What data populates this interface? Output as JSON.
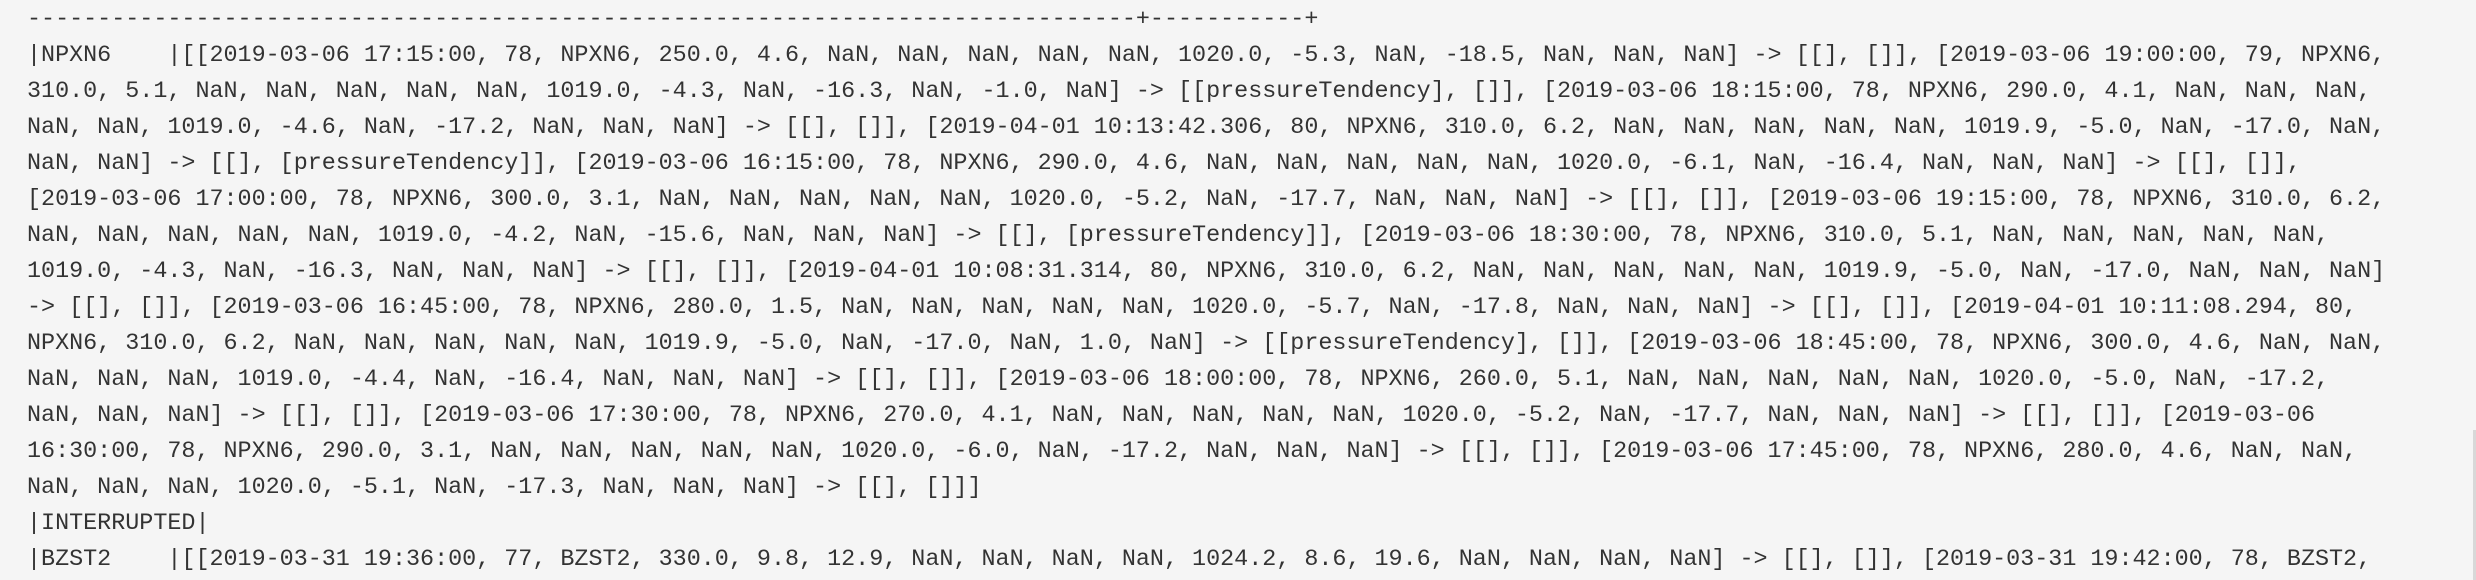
{
  "output": {
    "lines": [
      "-------------------------------------------------------------------------------+-----------+",
      "|NPXN6    |[[2019-03-06 17:15:00, 78, NPXN6, 250.0, 4.6, NaN, NaN, NaN, NaN, NaN, 1020.0, -5.3, NaN, -18.5, NaN, NaN, NaN] -> [[], []], [2019-03-06 19:00:00, 79, NPXN6,",
      "310.0, 5.1, NaN, NaN, NaN, NaN, NaN, 1019.0, -4.3, NaN, -16.3, NaN, -1.0, NaN] -> [[pressureTendency], []], [2019-03-06 18:15:00, 78, NPXN6, 290.0, 4.1, NaN, NaN, NaN,",
      "NaN, NaN, 1019.0, -4.6, NaN, -17.2, NaN, NaN, NaN] -> [[], []], [2019-04-01 10:13:42.306, 80, NPXN6, 310.0, 6.2, NaN, NaN, NaN, NaN, NaN, 1019.9, -5.0, NaN, -17.0, NaN,",
      "NaN, NaN] -> [[], [pressureTendency]], [2019-03-06 16:15:00, 78, NPXN6, 290.0, 4.6, NaN, NaN, NaN, NaN, NaN, 1020.0, -6.1, NaN, -16.4, NaN, NaN, NaN] -> [[], []],",
      "[2019-03-06 17:00:00, 78, NPXN6, 300.0, 3.1, NaN, NaN, NaN, NaN, NaN, 1020.0, -5.2, NaN, -17.7, NaN, NaN, NaN] -> [[], []], [2019-03-06 19:15:00, 78, NPXN6, 310.0, 6.2,",
      "NaN, NaN, NaN, NaN, NaN, 1019.0, -4.2, NaN, -15.6, NaN, NaN, NaN] -> [[], [pressureTendency]], [2019-03-06 18:30:00, 78, NPXN6, 310.0, 5.1, NaN, NaN, NaN, NaN, NaN,",
      "1019.0, -4.3, NaN, -16.3, NaN, NaN, NaN] -> [[], []], [2019-04-01 10:08:31.314, 80, NPXN6, 310.0, 6.2, NaN, NaN, NaN, NaN, NaN, 1019.9, -5.0, NaN, -17.0, NaN, NaN, NaN]",
      "-> [[], []], [2019-03-06 16:45:00, 78, NPXN6, 280.0, 1.5, NaN, NaN, NaN, NaN, NaN, 1020.0, -5.7, NaN, -17.8, NaN, NaN, NaN] -> [[], []], [2019-04-01 10:11:08.294, 80,",
      "NPXN6, 310.0, 6.2, NaN, NaN, NaN, NaN, NaN, 1019.9, -5.0, NaN, -17.0, NaN, 1.0, NaN] -> [[pressureTendency], []], [2019-03-06 18:45:00, 78, NPXN6, 300.0, 4.6, NaN, NaN,",
      "NaN, NaN, NaN, 1019.0, -4.4, NaN, -16.4, NaN, NaN, NaN] -> [[], []], [2019-03-06 18:00:00, 78, NPXN6, 260.0, 5.1, NaN, NaN, NaN, NaN, NaN, 1020.0, -5.0, NaN, -17.2,",
      "NaN, NaN, NaN] -> [[], []], [2019-03-06 17:30:00, 78, NPXN6, 270.0, 4.1, NaN, NaN, NaN, NaN, NaN, 1020.0, -5.2, NaN, -17.7, NaN, NaN, NaN] -> [[], []], [2019-03-06",
      "16:30:00, 78, NPXN6, 290.0, 3.1, NaN, NaN, NaN, NaN, NaN, 1020.0, -6.0, NaN, -17.2, NaN, NaN, NaN] -> [[], []], [2019-03-06 17:45:00, 78, NPXN6, 280.0, 4.6, NaN, NaN,",
      "NaN, NaN, NaN, 1020.0, -5.1, NaN, -17.3, NaN, NaN, NaN] -> [[], []]]",
      "|INTERRUPTED|",
      "|BZST2    |[[2019-03-31 19:36:00, 77, BZST2, 330.0, 9.8, 12.9, NaN, NaN, NaN, NaN, 1024.2, 8.6, 19.6, NaN, NaN, NaN, NaN] -> [[], []], [2019-03-31 19:42:00, 78, BZST2,"
    ]
  }
}
